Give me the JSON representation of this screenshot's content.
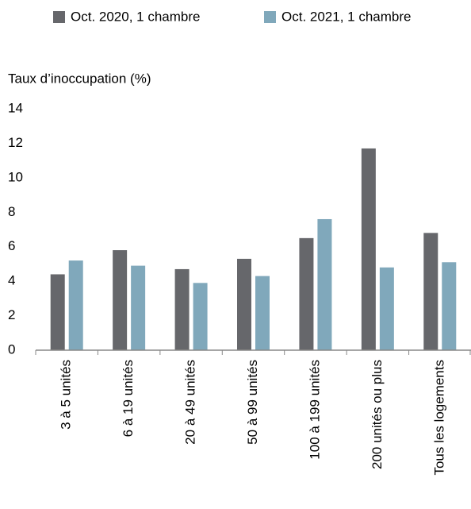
{
  "chart_data": {
    "type": "bar",
    "y_label": "Taux d’inoccupation (%)",
    "categories": [
      "3 à 5 unités",
      "6 à 19 unités",
      "20 à 49 unités",
      "50 à 99 unités",
      "100 à 199 unités",
      "200 unités ou plus",
      "Tous les logements"
    ],
    "series": [
      {
        "name": "Oct. 2020, 1 chambre",
        "color": "#66676b",
        "values": [
          4.4,
          5.8,
          4.7,
          5.3,
          6.5,
          11.7,
          6.8
        ]
      },
      {
        "name": "Oct. 2021, 1 chambre",
        "color": "#80a8bb",
        "values": [
          5.2,
          4.9,
          3.9,
          4.3,
          7.6,
          4.8,
          5.1
        ]
      }
    ],
    "ylim": [
      0,
      14
    ],
    "yticks": [
      0,
      2,
      4,
      6,
      8,
      10,
      12,
      14
    ],
    "grid": false,
    "legend": "top"
  }
}
